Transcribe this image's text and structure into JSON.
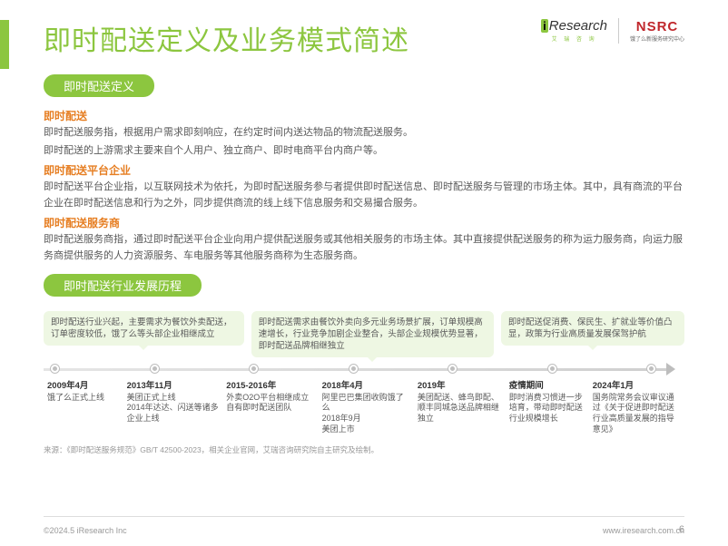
{
  "header": {
    "title": "即时配送定义及业务模式简述",
    "logo_ir": "Research",
    "logo_ir_sub": "艾 瑞 咨 询",
    "logo_nsrc": "NSRC",
    "logo_nsrc_sub": "饿了么新服务研究中心"
  },
  "def_section": {
    "pill": "即时配送定义",
    "h1": "即时配送",
    "p1a": "即时配送服务指，根据用户需求即刻响应，在约定时间内送达物品的物流配送服务。",
    "p1b": "即时配送的上游需求主要来自个人用户、独立商户、即时电商平台内商户等。",
    "h2": "即时配送平台企业",
    "p2": "即时配送平台企业指，以互联网技术为依托，为即时配送服务参与者提供即时配送信息、即时配送服务与管理的市场主体。其中，具有商流的平台企业在即时配送信息和行为之外，同步提供商流的线上线下信息服务和交易撮合服务。",
    "h3": "即时配送服务商",
    "p3": "即时配送服务商指，通过即时配送平台企业向用户提供配送服务或其他相关服务的市场主体。其中直接提供配送服务的称为运力服务商，向运力服务商提供服务的人力资源服务、车电服务等其他服务商称为生态服务商。"
  },
  "history": {
    "pill": "即时配送行业发展历程",
    "bubbles": [
      "即时配送行业兴起，主要需求为餐饮外卖配送，订单密度较低，饿了么等头部企业相继成立",
      "即时配送需求由餐饮外卖向多元业务场景扩展，订单规模高速增长，行业竞争加剧企业整合，头部企业规模优势显著，即时配送品牌相继独立",
      "即时配送促消费、保民生、扩就业等价值凸显，政策为行业高质量发展保驾护航"
    ],
    "events": [
      {
        "date": "2009年4月",
        "text": "饿了么正式上线"
      },
      {
        "date": "2013年11月",
        "text": "美团正式上线\n2014年达达、闪送等诸多企业上线"
      },
      {
        "date": "2015-2016年",
        "text": "外卖O2O平台相继成立自有即时配送团队"
      },
      {
        "date": "2018年4月",
        "text": "阿里巴巴集团收购饿了么\n2018年9月\n美团上市"
      },
      {
        "date": "2019年",
        "text": "美团配送、蜂鸟即配、顺丰同城急送品牌相继独立"
      },
      {
        "date": "疫情期间",
        "text": "即时消费习惯进一步培育，带动即时配送行业规模增长"
      },
      {
        "date": "2024年1月",
        "text": "国务院常务会议审议通过《关于促进即时配送行业高质量发展的指导意见》"
      }
    ]
  },
  "source": "来源：《即时配送服务规范》GB/T 42500-2023，相关企业官网，艾瑞咨询研究院自主研究及绘制。",
  "footer": {
    "copyright": "©2024.5 iResearch Inc",
    "url": "www.iresearch.com.cn",
    "page": "6"
  }
}
